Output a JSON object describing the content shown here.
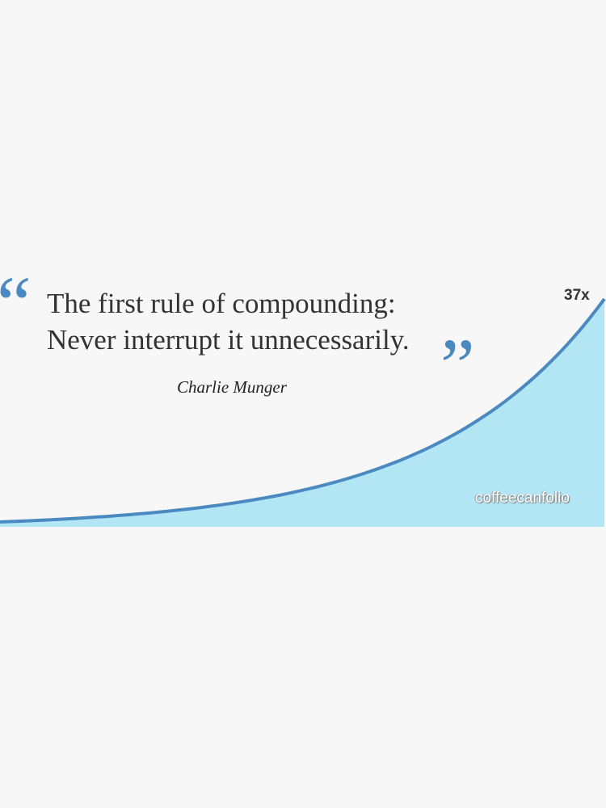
{
  "quote": {
    "line1": "The first rule of compounding:",
    "line2": "Never interrupt it unnecessarily.",
    "open_mark": "“",
    "close_mark": "”",
    "author": "Charlie Munger"
  },
  "growth_label": "37x",
  "watermark": "coffeecanfolio",
  "colors": {
    "curve": "#4a8ac0",
    "fill": "#b3e6f5",
    "background": "#f7f7f7",
    "quote_marks": "#4a8ac0"
  }
}
